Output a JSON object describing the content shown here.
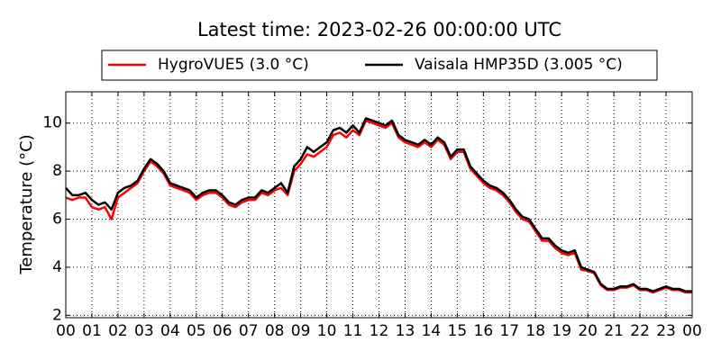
{
  "chart_data": {
    "type": "line",
    "title": "Latest time: 2023-02-26 00:00:00 UTC",
    "y_label": "Temperature (°C)",
    "x": [
      0,
      0.25,
      0.5,
      0.75,
      1,
      1.25,
      1.5,
      1.75,
      2,
      2.25,
      2.5,
      2.75,
      3,
      3.25,
      3.5,
      3.75,
      4,
      4.25,
      4.5,
      4.75,
      5,
      5.25,
      5.5,
      5.75,
      6,
      6.25,
      6.5,
      6.75,
      7,
      7.25,
      7.5,
      7.75,
      8,
      8.25,
      8.5,
      8.75,
      9,
      9.25,
      9.5,
      9.75,
      10,
      10.25,
      10.5,
      10.75,
      11,
      11.25,
      11.5,
      11.75,
      12,
      12.25,
      12.5,
      12.75,
      13,
      13.25,
      13.5,
      13.75,
      14,
      14.25,
      14.5,
      14.75,
      15,
      15.25,
      15.5,
      15.75,
      16,
      16.25,
      16.5,
      16.75,
      17,
      17.25,
      17.5,
      17.75,
      18,
      18.25,
      18.5,
      18.75,
      19,
      19.25,
      19.5,
      19.75,
      20,
      20.25,
      20.5,
      20.75,
      21,
      21.25,
      21.5,
      21.75,
      22,
      22.25,
      22.5,
      22.75,
      23,
      23.25,
      23.5,
      23.75,
      24
    ],
    "series": [
      {
        "name": "HygroVUE5 (3.0 °C)",
        "color": "#ff0000",
        "values": [
          6.9,
          6.8,
          6.9,
          6.9,
          6.5,
          6.4,
          6.5,
          6.0,
          6.9,
          7.1,
          7.3,
          7.5,
          8.0,
          8.4,
          8.2,
          7.9,
          7.4,
          7.3,
          7.2,
          7.1,
          6.8,
          7.0,
          7.1,
          7.1,
          6.9,
          6.6,
          6.5,
          6.7,
          6.8,
          6.8,
          7.1,
          7.0,
          7.2,
          7.3,
          7.0,
          8.0,
          8.3,
          8.7,
          8.6,
          8.8,
          9.0,
          9.5,
          9.6,
          9.4,
          9.7,
          9.5,
          10.1,
          10.0,
          9.9,
          9.8,
          10.0,
          9.4,
          9.2,
          9.1,
          9.0,
          9.2,
          9.0,
          9.3,
          9.1,
          8.5,
          8.8,
          8.8,
          8.1,
          7.8,
          7.5,
          7.3,
          7.2,
          7.0,
          6.7,
          6.3,
          6.0,
          5.9,
          5.5,
          5.1,
          5.1,
          4.8,
          4.6,
          4.5,
          4.6,
          3.9,
          3.85,
          3.75,
          3.25,
          3.05,
          3.05,
          3.15,
          3.15,
          3.25,
          3.05,
          3.05,
          2.95,
          3.05,
          3.15,
          3.05,
          3.05,
          2.95,
          2.95
        ]
      },
      {
        "name": "Vaisala HMP35D (3.005 °C)",
        "color": "#000000",
        "values": [
          7.3,
          7.0,
          7.0,
          7.1,
          6.8,
          6.6,
          6.7,
          6.4,
          7.1,
          7.3,
          7.4,
          7.6,
          8.1,
          8.5,
          8.3,
          8.0,
          7.5,
          7.4,
          7.3,
          7.2,
          6.9,
          7.1,
          7.2,
          7.2,
          7.0,
          6.7,
          6.6,
          6.8,
          6.9,
          6.9,
          7.2,
          7.1,
          7.3,
          7.5,
          7.1,
          8.2,
          8.5,
          9.0,
          8.8,
          9.0,
          9.2,
          9.7,
          9.8,
          9.6,
          9.9,
          9.6,
          10.2,
          10.1,
          10.0,
          9.9,
          10.1,
          9.5,
          9.3,
          9.2,
          9.1,
          9.3,
          9.1,
          9.4,
          9.2,
          8.6,
          8.9,
          8.9,
          8.2,
          7.9,
          7.6,
          7.4,
          7.3,
          7.1,
          6.8,
          6.4,
          6.1,
          6.0,
          5.6,
          5.2,
          5.2,
          4.9,
          4.7,
          4.6,
          4.7,
          4.0,
          3.9,
          3.8,
          3.3,
          3.1,
          3.1,
          3.2,
          3.2,
          3.3,
          3.1,
          3.1,
          3.0,
          3.1,
          3.2,
          3.1,
          3.1,
          3.0,
          3.0
        ]
      }
    ],
    "xlim": [
      0,
      24
    ],
    "xticks": [
      {
        "value": 0,
        "label": "00"
      },
      {
        "value": 1,
        "label": "01"
      },
      {
        "value": 2,
        "label": "02"
      },
      {
        "value": 3,
        "label": "03"
      },
      {
        "value": 4,
        "label": "04"
      },
      {
        "value": 5,
        "label": "05"
      },
      {
        "value": 6,
        "label": "06"
      },
      {
        "value": 7,
        "label": "07"
      },
      {
        "value": 8,
        "label": "08"
      },
      {
        "value": 9,
        "label": "09"
      },
      10,
      11,
      12,
      13,
      14,
      15,
      16,
      17,
      18,
      19,
      20,
      21,
      22,
      23,
      {
        "value": 24,
        "label": "00"
      }
    ],
    "ylim": [
      1.9,
      11.3
    ],
    "yticks": [
      2,
      4,
      6,
      8,
      10
    ],
    "grid": true
  }
}
